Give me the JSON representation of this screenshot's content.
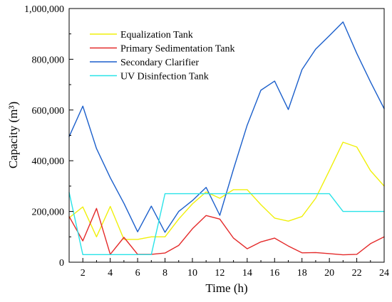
{
  "chart_data": {
    "type": "line",
    "xlabel": "Time (h)",
    "ylabel": "Capacity (m³)",
    "x": [
      1,
      2,
      3,
      4,
      5,
      6,
      7,
      8,
      9,
      10,
      11,
      12,
      13,
      14,
      15,
      16,
      17,
      18,
      19,
      20,
      21,
      22,
      23,
      24
    ],
    "xlim": [
      1,
      24
    ],
    "ylim": [
      0,
      1000000
    ],
    "xticks": [
      2,
      4,
      6,
      8,
      10,
      12,
      14,
      16,
      18,
      20,
      22,
      24
    ],
    "yticks": [
      0,
      200000,
      400000,
      600000,
      800000,
      1000000
    ],
    "ytick_labels": [
      "0",
      "200,000",
      "400,000",
      "600,000",
      "800,000",
      "1,000,000"
    ],
    "grid": false,
    "legend_position": "top-left",
    "series": [
      {
        "name": "Equalization Tank",
        "color": "#f0f00a",
        "values": [
          175000,
          218000,
          100000,
          220000,
          90000,
          90000,
          100000,
          100000,
          170000,
          230000,
          277000,
          252000,
          286000,
          286000,
          227000,
          174000,
          162000,
          180000,
          252000,
          361000,
          473000,
          454000,
          361000,
          300000
        ]
      },
      {
        "name": "Primary Sedimentation Tank",
        "color": "#e42a2a",
        "values": [
          180000,
          84000,
          212000,
          31000,
          98000,
          31000,
          31000,
          36000,
          66000,
          132000,
          184000,
          170000,
          95000,
          53000,
          80000,
          95000,
          64000,
          37000,
          38000,
          34000,
          29000,
          31000,
          73000,
          100000
        ]
      },
      {
        "name": "Secondary Clarifier",
        "color": "#1b5fcb",
        "values": [
          495000,
          615000,
          448000,
          333000,
          232000,
          120000,
          221000,
          118000,
          200000,
          243000,
          295000,
          185000,
          367000,
          540000,
          678000,
          714000,
          602000,
          759000,
          840000,
          893000,
          947000,
          823000,
          711000,
          605000
        ]
      },
      {
        "name": "UV Disinfection Tank",
        "color": "#29e3e8",
        "values": [
          275000,
          30000,
          30000,
          30000,
          30000,
          30000,
          30000,
          270000,
          270000,
          270000,
          270000,
          270000,
          270000,
          270000,
          270000,
          270000,
          270000,
          270000,
          270000,
          270000,
          200000,
          200000,
          200000,
          200000
        ]
      }
    ]
  }
}
